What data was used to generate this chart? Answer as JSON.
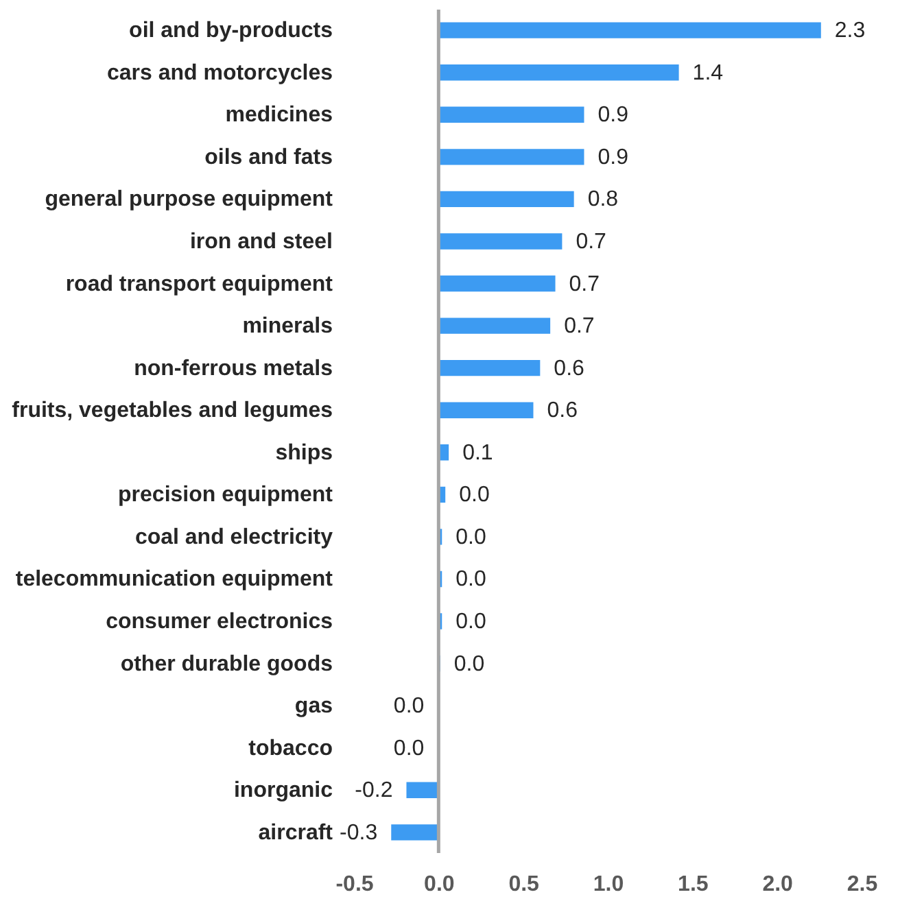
{
  "chart_data": {
    "type": "bar",
    "orientation": "horizontal",
    "categories": [
      "oil and by-products",
      "cars and motorcycles",
      "medicines",
      "oils and fats",
      "general purpose equipment",
      "iron and steel",
      "road transport equipment",
      "minerals",
      "non-ferrous metals",
      "fruits, vegetables and legumes",
      "ships",
      "precision equipment",
      "coal and electricity",
      "telecommunication equipment",
      "consumer electronics",
      "other durable goods",
      "gas",
      "tobacco",
      "inorganic",
      "aircraft"
    ],
    "values": [
      2.26,
      1.42,
      0.86,
      0.86,
      0.8,
      0.73,
      0.69,
      0.66,
      0.6,
      0.56,
      0.06,
      0.04,
      0.02,
      0.02,
      0.02,
      0.01,
      -0.004,
      -0.004,
      -0.19,
      -0.28
    ],
    "value_labels": [
      "2.3",
      "1.4",
      "0.9",
      "0.9",
      "0.8",
      "0.7",
      "0.7",
      "0.7",
      "0.6",
      "0.6",
      "0.1",
      "0.0",
      "0.0",
      "0.0",
      "0.0",
      "0.0",
      "0.0",
      "0.0",
      "-0.2",
      "-0.3"
    ],
    "color": "#3d9bf2",
    "xlim": [
      -0.5,
      2.5
    ],
    "xticks": [
      {
        "value": -0.5,
        "label": "-0.5"
      },
      {
        "value": 0,
        "label": "0.0"
      },
      {
        "value": 0.5,
        "label": "0.5"
      },
      {
        "value": 1,
        "label": "1.0"
      },
      {
        "value": 1.5,
        "label": "1.5"
      },
      {
        "value": 2,
        "label": "2.0"
      },
      {
        "value": 2.5,
        "label": "2.5"
      }
    ],
    "ref_lines": [
      {
        "axis": "x",
        "value": 0,
        "color": "#a6a6a6"
      }
    ]
  }
}
